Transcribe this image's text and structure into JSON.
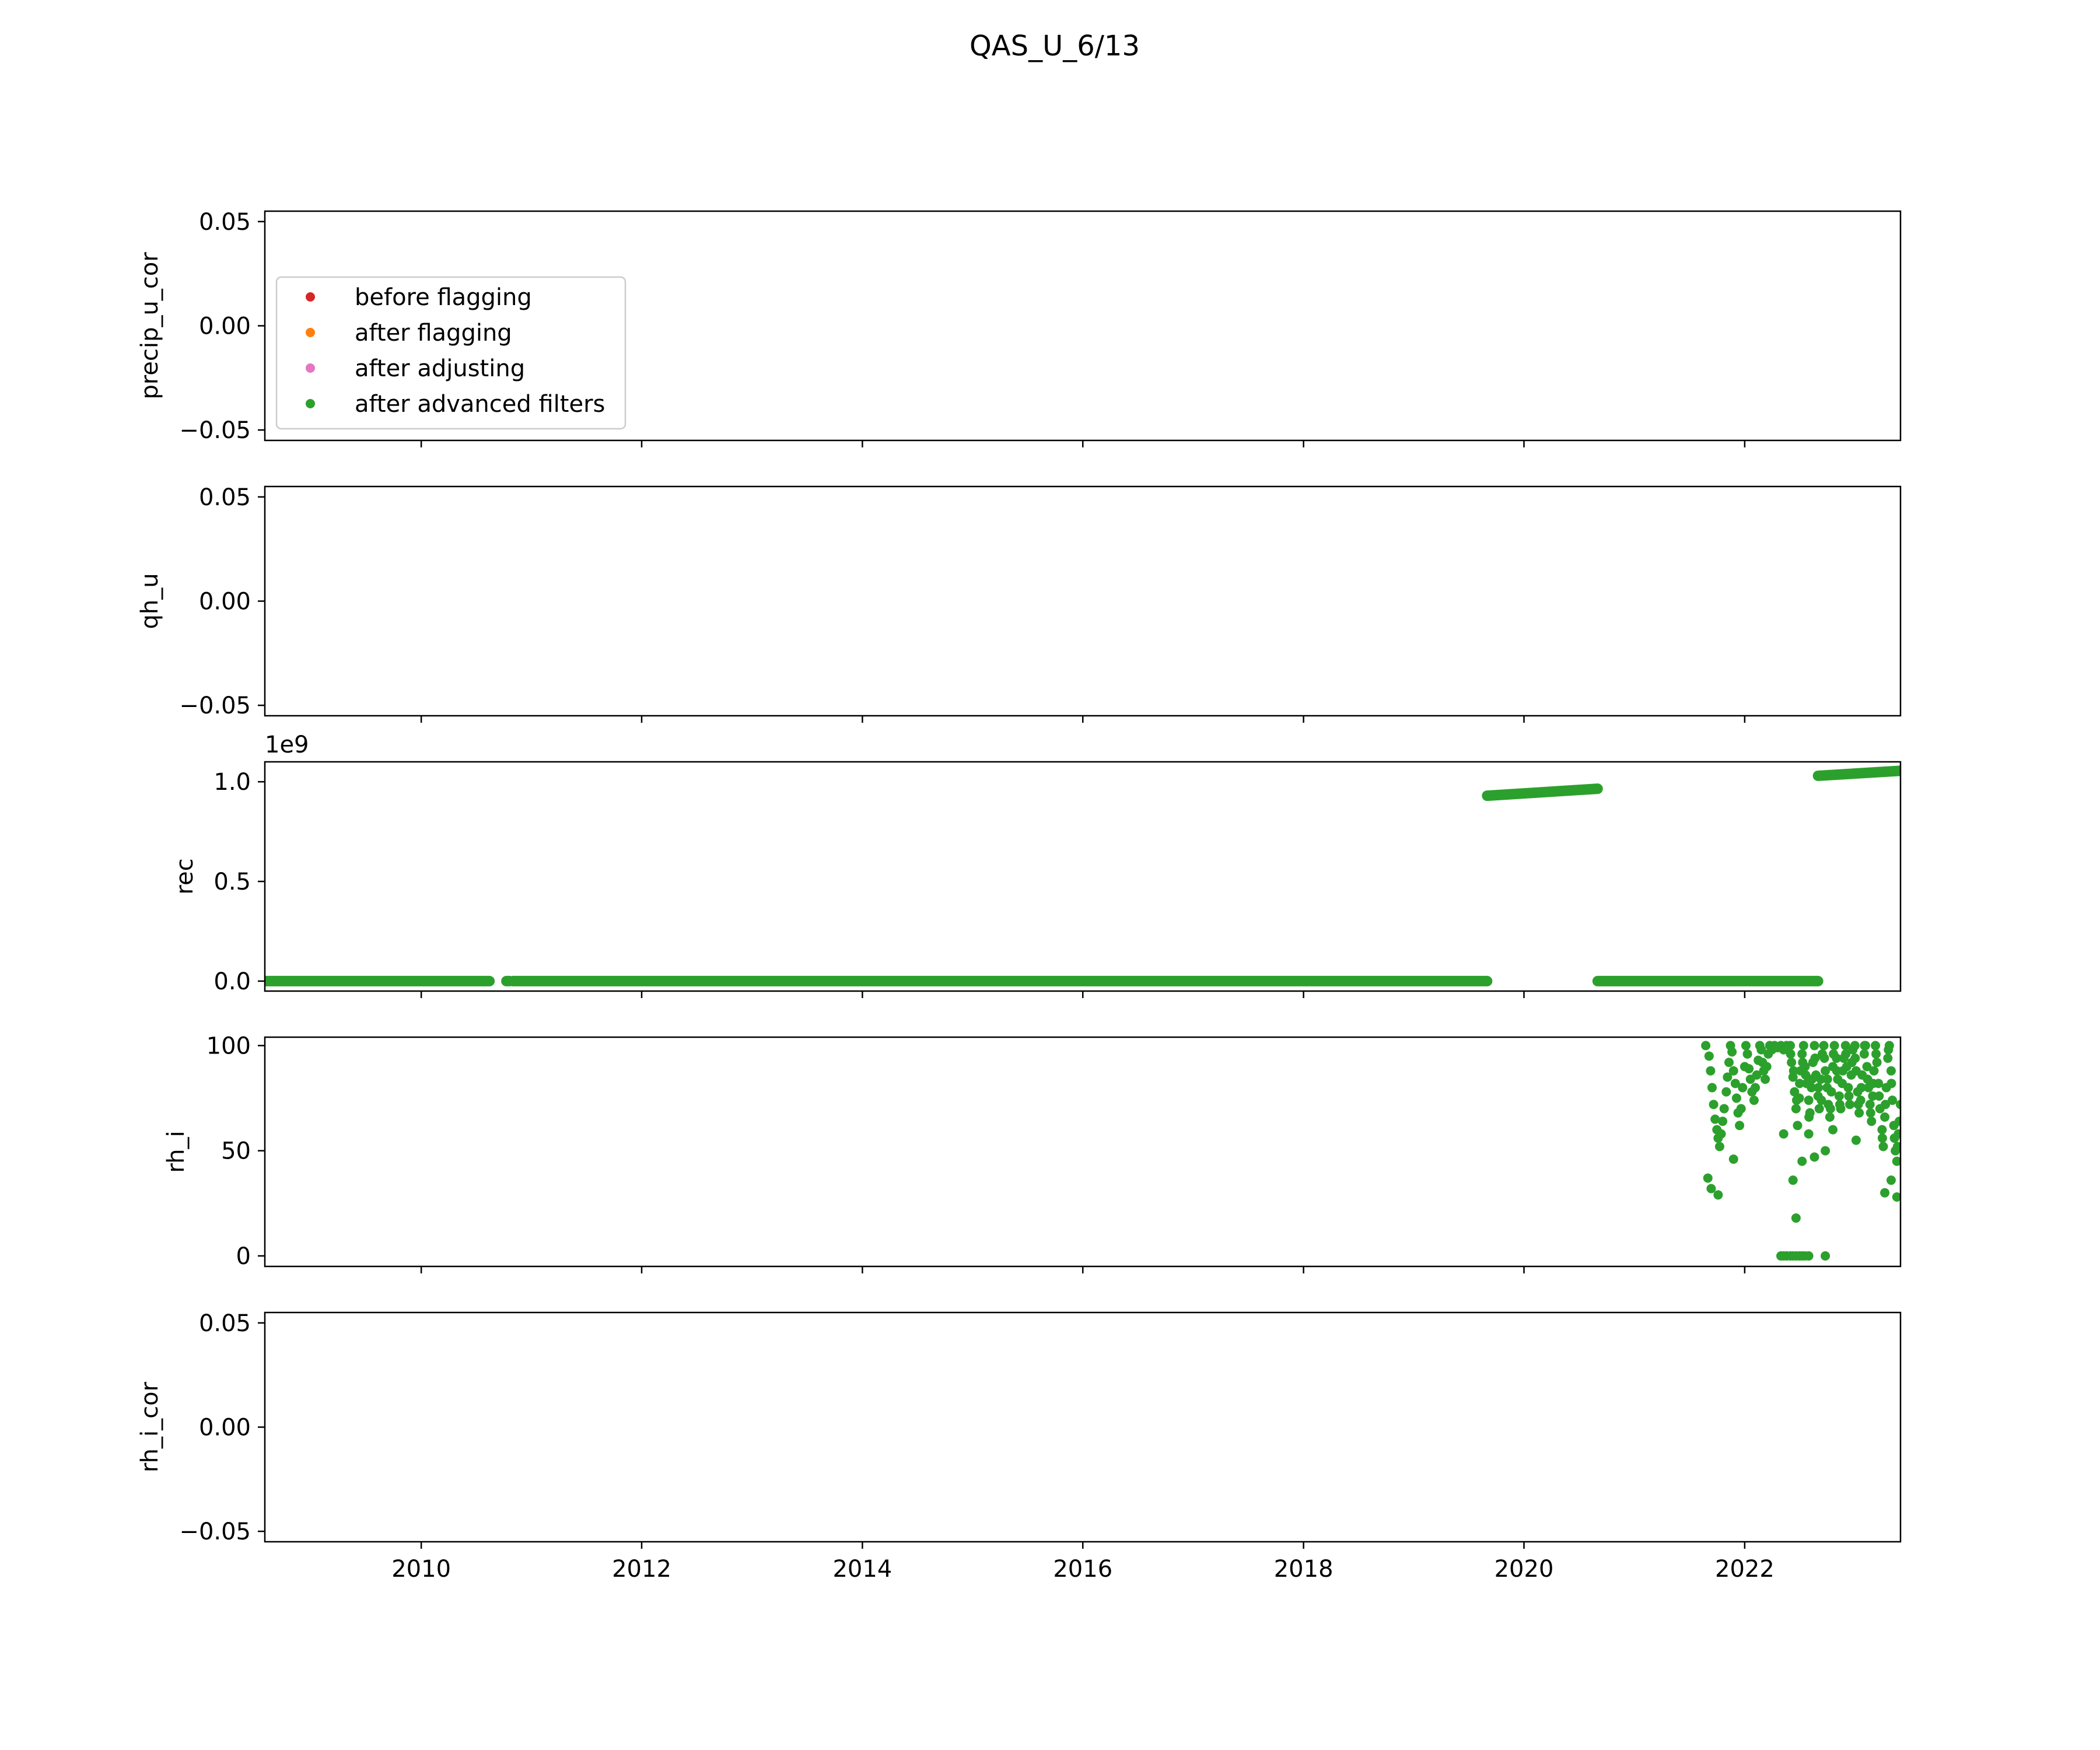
{
  "figure": {
    "title": "QAS_U_6/13"
  },
  "colors": {
    "before_flagging": "#d62728",
    "after_flagging": "#ff7f0e",
    "after_adjusting": "#e377c2",
    "after_advanced_filters": "#2ca02c"
  },
  "legend": {
    "panel": 0,
    "location": "center-left",
    "entries": [
      {
        "label": "before flagging",
        "color": "#d62728"
      },
      {
        "label": "after flagging",
        "color": "#ff7f0e"
      },
      {
        "label": "after adjusting",
        "color": "#e377c2"
      },
      {
        "label": "after advanced filters",
        "color": "#2ca02c"
      }
    ]
  },
  "chart_data": [
    {
      "type": "scatter",
      "ylabel": "precip_u_cor",
      "xlim": [
        "2008-08-01",
        "2023-06-01"
      ],
      "ylim": [
        -0.055,
        0.055
      ],
      "yticks": [
        -0.05,
        0.0,
        0.05
      ],
      "ytick_labels": [
        "−0.05",
        "0.00",
        "0.05"
      ],
      "series": []
    },
    {
      "type": "scatter",
      "ylabel": "qh_u",
      "xlim": [
        "2008-08-01",
        "2023-06-01"
      ],
      "ylim": [
        -0.055,
        0.055
      ],
      "yticks": [
        -0.05,
        0.0,
        0.05
      ],
      "ytick_labels": [
        "−0.05",
        "0.00",
        "0.05"
      ],
      "series": []
    },
    {
      "type": "scatter",
      "ylabel": "rec",
      "offset_text": "1e9",
      "xlim": [
        "2008-08-01",
        "2023-06-01"
      ],
      "ylim": [
        -0.05,
        1.1
      ],
      "yticks": [
        0.0,
        0.5,
        1.0
      ],
      "ytick_labels": [
        "0.0",
        "0.5",
        "1.0"
      ],
      "series": [
        {
          "color": "#2ca02c",
          "segments": [
            {
              "x": [
                "2008-08-01",
                "2010-08-15"
              ],
              "y": [
                0.0,
                0.0
              ]
            },
            {
              "x": [
                "2010-10-10",
                "2010-10-20"
              ],
              "y": [
                0.0,
                0.0
              ]
            },
            {
              "x": [
                "2010-11-01",
                "2019-09-01"
              ],
              "y": [
                0.0,
                0.0
              ]
            },
            {
              "x": [
                "2019-09-01",
                "2020-09-01"
              ],
              "y": [
                0.93,
                0.965
              ]
            },
            {
              "x": [
                "2020-09-01",
                "2022-09-01"
              ],
              "y": [
                0.0,
                0.0
              ]
            },
            {
              "x": [
                "2022-09-01",
                "2023-06-01"
              ],
              "y": [
                1.03,
                1.055
              ]
            }
          ]
        }
      ]
    },
    {
      "type": "scatter",
      "ylabel": "rh_i",
      "xlim": [
        "2008-08-01",
        "2023-06-01"
      ],
      "ylim": [
        -5,
        104
      ],
      "yticks": [
        0,
        50,
        100
      ],
      "ytick_labels": [
        "0",
        "50",
        "100"
      ],
      "series": [
        {
          "color": "#2ca02c",
          "points": [
            [
              "2021-08-25",
              100
            ],
            [
              "2021-09-05",
              95
            ],
            [
              "2021-09-10",
              88
            ],
            [
              "2021-09-15",
              80
            ],
            [
              "2021-09-20",
              72
            ],
            [
              "2021-09-25",
              65
            ],
            [
              "2021-10-01",
              60
            ],
            [
              "2021-10-05",
              56
            ],
            [
              "2021-10-10",
              52
            ],
            [
              "2021-10-15",
              58
            ],
            [
              "2021-10-20",
              64
            ],
            [
              "2021-10-25",
              70
            ],
            [
              "2021-11-01",
              78
            ],
            [
              "2021-11-05",
              85
            ],
            [
              "2021-11-10",
              92
            ],
            [
              "2021-11-15",
              100
            ],
            [
              "2021-11-20",
              97
            ],
            [
              "2021-11-25",
              88
            ],
            [
              "2021-12-01",
              82
            ],
            [
              "2021-12-05",
              75
            ],
            [
              "2021-12-10",
              68
            ],
            [
              "2021-12-15",
              62
            ],
            [
              "2021-12-20",
              70
            ],
            [
              "2021-12-25",
              80
            ],
            [
              "2022-01-01",
              90
            ],
            [
              "2022-01-05",
              100
            ],
            [
              "2022-01-10",
              96
            ],
            [
              "2022-01-15",
              89
            ],
            [
              "2022-01-20",
              84
            ],
            [
              "2022-01-25",
              78
            ],
            [
              "2022-02-01",
              74
            ],
            [
              "2022-02-05",
              80
            ],
            [
              "2022-02-10",
              86
            ],
            [
              "2022-02-15",
              93
            ],
            [
              "2022-02-20",
              100
            ],
            [
              "2022-02-25",
              98
            ],
            [
              "2022-03-01",
              92
            ],
            [
              "2022-03-05",
              88
            ],
            [
              "2022-03-10",
              84
            ],
            [
              "2022-03-15",
              90
            ],
            [
              "2022-03-20",
              96
            ],
            [
              "2022-03-25",
              100
            ],
            [
              "2022-04-01",
              98
            ],
            [
              "2022-04-10",
              100
            ],
            [
              "2022-04-20",
              99
            ],
            [
              "2022-05-01",
              100
            ],
            [
              "2022-05-10",
              98
            ],
            [
              "2022-05-20",
              100
            ],
            [
              "2021-09-01",
              37
            ],
            [
              "2021-09-12",
              32
            ],
            [
              "2021-10-05",
              29
            ],
            [
              "2021-11-25",
              46
            ],
            [
              "2022-05-10",
              58
            ],
            [
              "2022-06-10",
              36
            ],
            [
              "2022-06-20",
              18
            ],
            [
              "2022-07-10",
              45
            ],
            [
              "2022-08-01",
              58
            ],
            [
              "2022-08-20",
              47
            ],
            [
              "2022-09-25",
              50
            ],
            [
              "2022-10-20",
              60
            ],
            [
              "2023-01-05",
              55
            ],
            [
              "2023-04-10",
              30
            ],
            [
              "2023-05-01",
              36
            ],
            [
              "2023-05-20",
              28
            ],
            [
              "2022-05-01",
              0
            ],
            [
              "2022-05-10",
              0
            ],
            [
              "2022-05-20",
              0
            ],
            [
              "2022-06-01",
              0
            ],
            [
              "2022-06-10",
              0
            ],
            [
              "2022-06-20",
              0
            ],
            [
              "2022-07-01",
              0
            ],
            [
              "2022-07-10",
              0
            ],
            [
              "2022-07-20",
              0
            ],
            [
              "2022-08-01",
              0
            ],
            [
              "2022-09-25",
              0
            ],
            [
              "2022-06-01",
              100
            ],
            [
              "2022-06-05",
              92
            ],
            [
              "2022-06-10",
              85
            ],
            [
              "2022-06-15",
              78
            ],
            [
              "2022-06-20",
              70
            ],
            [
              "2022-06-25",
              62
            ],
            [
              "2022-07-01",
              75
            ],
            [
              "2022-07-05",
              88
            ],
            [
              "2022-07-10",
              96
            ],
            [
              "2022-07-15",
              100
            ],
            [
              "2022-07-20",
              90
            ],
            [
              "2022-07-25",
              82
            ],
            [
              "2022-08-01",
              74
            ],
            [
              "2022-08-05",
              68
            ],
            [
              "2022-08-10",
              80
            ],
            [
              "2022-08-15",
              92
            ],
            [
              "2022-08-20",
              100
            ],
            [
              "2022-08-25",
              86
            ],
            [
              "2022-09-01",
              76
            ],
            [
              "2022-09-05",
              70
            ],
            [
              "2022-09-10",
              84
            ],
            [
              "2022-09-15",
              96
            ],
            [
              "2022-09-20",
              100
            ],
            [
              "2022-09-25",
              88
            ],
            [
              "2022-10-01",
              80
            ],
            [
              "2022-10-05",
              72
            ],
            [
              "2022-10-10",
              66
            ],
            [
              "2022-10-15",
              78
            ],
            [
              "2022-10-20",
              90
            ],
            [
              "2022-10-25",
              100
            ],
            [
              "2022-11-01",
              94
            ],
            [
              "2022-11-05",
              84
            ],
            [
              "2022-11-10",
              76
            ],
            [
              "2022-11-15",
              70
            ],
            [
              "2022-11-20",
              82
            ],
            [
              "2022-11-25",
              94
            ],
            [
              "2022-12-01",
              100
            ],
            [
              "2022-12-05",
              90
            ],
            [
              "2022-12-10",
              80
            ],
            [
              "2022-12-15",
              72
            ],
            [
              "2022-12-20",
              86
            ],
            [
              "2022-12-25",
              98
            ],
            [
              "2023-01-01",
              100
            ],
            [
              "2023-01-05",
              88
            ],
            [
              "2023-01-10",
              78
            ],
            [
              "2023-01-15",
              68
            ],
            [
              "2023-01-20",
              74
            ],
            [
              "2023-01-25",
              86
            ],
            [
              "2023-02-01",
              96
            ],
            [
              "2023-02-05",
              100
            ],
            [
              "2023-02-10",
              90
            ],
            [
              "2023-02-15",
              80
            ],
            [
              "2023-02-20",
              72
            ],
            [
              "2023-02-25",
              64
            ],
            [
              "2023-03-01",
              76
            ],
            [
              "2023-03-05",
              88
            ],
            [
              "2023-03-10",
              100
            ],
            [
              "2023-03-15",
              92
            ],
            [
              "2023-03-20",
              82
            ],
            [
              "2023-03-25",
              70
            ],
            [
              "2023-04-01",
              60
            ],
            [
              "2023-04-05",
              52
            ],
            [
              "2023-04-10",
              66
            ],
            [
              "2023-04-15",
              80
            ],
            [
              "2023-04-20",
              94
            ],
            [
              "2023-04-25",
              100
            ],
            [
              "2023-05-01",
              88
            ],
            [
              "2023-05-05",
              74
            ],
            [
              "2023-05-10",
              62
            ],
            [
              "2023-05-15",
              50
            ],
            [
              "2023-05-20",
              45
            ],
            [
              "2023-05-25",
              58
            ],
            [
              "2023-06-01",
              72
            ],
            [
              "2022-06-02",
              96
            ],
            [
              "2022-06-12",
              88
            ],
            [
              "2022-06-22",
              74
            ],
            [
              "2022-07-02",
              82
            ],
            [
              "2022-07-12",
              92
            ],
            [
              "2022-07-22",
              86
            ],
            [
              "2022-08-02",
              66
            ],
            [
              "2022-08-12",
              84
            ],
            [
              "2022-08-22",
              94
            ],
            [
              "2022-09-02",
              80
            ],
            [
              "2022-09-12",
              74
            ],
            [
              "2022-09-22",
              94
            ],
            [
              "2022-10-02",
              84
            ],
            [
              "2022-10-12",
              70
            ],
            [
              "2022-10-22",
              96
            ],
            [
              "2022-11-02",
              88
            ],
            [
              "2022-11-12",
              72
            ],
            [
              "2022-11-22",
              88
            ],
            [
              "2022-12-02",
              96
            ],
            [
              "2022-12-12",
              76
            ],
            [
              "2022-12-22",
              92
            ],
            [
              "2023-01-02",
              94
            ],
            [
              "2023-01-12",
              72
            ],
            [
              "2023-01-22",
              80
            ],
            [
              "2023-02-02",
              100
            ],
            [
              "2023-02-12",
              84
            ],
            [
              "2023-02-22",
              68
            ],
            [
              "2023-03-02",
              82
            ],
            [
              "2023-03-12",
              96
            ],
            [
              "2023-03-22",
              76
            ],
            [
              "2023-04-02",
              56
            ],
            [
              "2023-04-12",
              72
            ],
            [
              "2023-04-22",
              98
            ],
            [
              "2023-05-02",
              82
            ],
            [
              "2023-05-12",
              56
            ],
            [
              "2023-05-22",
              52
            ],
            [
              "2023-05-28",
              64
            ]
          ]
        }
      ]
    },
    {
      "type": "scatter",
      "ylabel": "rh_i_cor",
      "xlim": [
        "2008-08-01",
        "2023-06-01"
      ],
      "ylim": [
        -0.055,
        0.055
      ],
      "yticks": [
        -0.05,
        0.0,
        0.05
      ],
      "ytick_labels": [
        "−0.05",
        "0.00",
        "0.05"
      ],
      "xticks": [
        "2010-01-01",
        "2012-01-01",
        "2014-01-01",
        "2016-01-01",
        "2018-01-01",
        "2020-01-01",
        "2022-01-01"
      ],
      "xtick_labels": [
        "2010",
        "2012",
        "2014",
        "2016",
        "2018",
        "2020",
        "2022"
      ],
      "series": []
    }
  ]
}
